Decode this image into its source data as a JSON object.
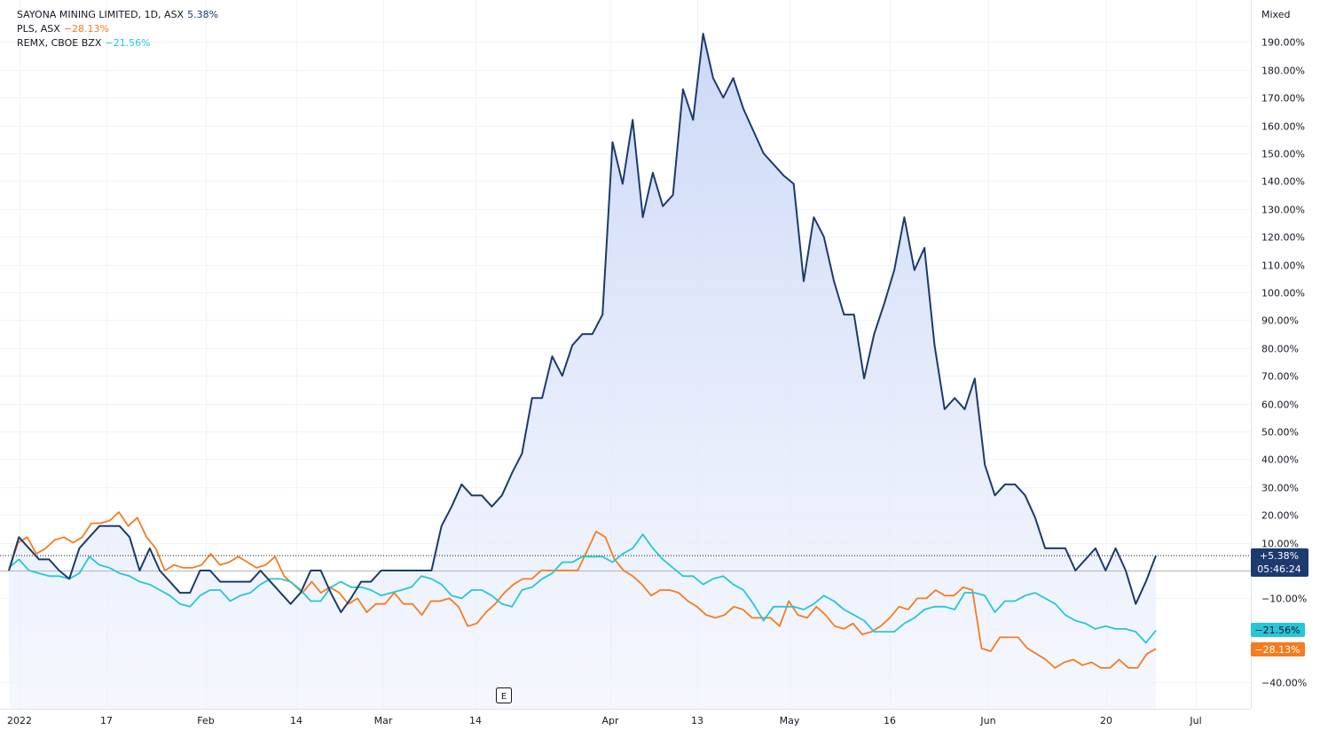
{
  "legend": [
    {
      "label": "SAYONA MINING LIMITED, 1D, ASX",
      "value": "5.38%",
      "color": "#1c3a6e"
    },
    {
      "label": "PLS, ASX",
      "value": "−28.13%",
      "color": "#f57c1f"
    },
    {
      "label": "REMX, CBOE BZX",
      "value": "−21.56%",
      "color": "#26c6da"
    }
  ],
  "scale_mode": "Mixed",
  "earnings_marker": "E",
  "badges": {
    "sya_value": "+5.38%",
    "sya_time": "05:46:24",
    "remx": "−21.56%",
    "pls": "−28.13%"
  },
  "chart_data": {
    "type": "line",
    "x_axis_labels": [
      "2022",
      "17",
      "Feb",
      "14",
      "Mar",
      "14",
      "Apr",
      "13",
      "May",
      "16",
      "Jun",
      "20",
      "Jul"
    ],
    "y_axis_labels": [
      "190.00%",
      "180.00%",
      "170.00%",
      "160.00%",
      "150.00%",
      "140.00%",
      "130.00%",
      "120.00%",
      "110.00%",
      "100.00%",
      "90.00%",
      "80.00%",
      "70.00%",
      "60.00%",
      "50.00%",
      "40.00%",
      "30.00%",
      "20.00%",
      "10.00%",
      "−10.00%",
      "−40.00%"
    ],
    "ylim": [
      -44,
      203
    ],
    "y_unit": "%",
    "area_fill_series": 0,
    "series": [
      {
        "name": "SAYONA MINING LIMITED, 1D, ASX",
        "color": "#1c3a6e",
        "values": [
          0,
          12,
          8,
          4,
          4,
          0,
          -3,
          8,
          12,
          16,
          16,
          16,
          12,
          0,
          8,
          0,
          -4,
          -8,
          -8,
          0,
          0,
          -4,
          -4,
          -4,
          -4,
          0,
          -4,
          -8,
          -12,
          -8,
          0,
          0,
          -8,
          -15,
          -10,
          -4,
          -4,
          0,
          0,
          0,
          0,
          0,
          0,
          16,
          23,
          31,
          27,
          27,
          23,
          27,
          35,
          42,
          62,
          62,
          77,
          70,
          81,
          85,
          85,
          92,
          154,
          139,
          162,
          127,
          143,
          131,
          135,
          173,
          162,
          193,
          177,
          170,
          177,
          166,
          158,
          150,
          146,
          142,
          139,
          104,
          127,
          120,
          104,
          92,
          92,
          69,
          85,
          96,
          108,
          127,
          108,
          116,
          81,
          58,
          62,
          58,
          69,
          38,
          27,
          31,
          31,
          27,
          19,
          8,
          8,
          8,
          0,
          4,
          8,
          0,
          8,
          0,
          -12,
          -4,
          5.38
        ]
      },
      {
        "name": "PLS, ASX",
        "color": "#f57c1f",
        "values": [
          0,
          10,
          12,
          6,
          8,
          11,
          12,
          10,
          12,
          17,
          17,
          18,
          21,
          16,
          19,
          12,
          8,
          0,
          2,
          1,
          1,
          2,
          6,
          2,
          3,
          5,
          3,
          1,
          2,
          5,
          -2,
          -5,
          -8,
          -4,
          -8,
          -6,
          -8,
          -12,
          -10,
          -15,
          -12,
          -12,
          -8,
          -12,
          -12,
          -16,
          -11,
          -11,
          -10,
          -13,
          -20,
          -19,
          -15,
          -12,
          -8,
          -5,
          -3,
          -3,
          0,
          0,
          0,
          0,
          0,
          7,
          14,
          12,
          4,
          0,
          -2,
          -5,
          -9,
          -7,
          -7,
          -8,
          -11,
          -13,
          -16,
          -17,
          -16,
          -13,
          -14,
          -17,
          -17,
          -17,
          -20,
          -11,
          -16,
          -17,
          -13,
          -16,
          -20,
          -21,
          -19,
          -23,
          -22,
          -20,
          -17,
          -13,
          -14,
          -10,
          -10,
          -7,
          -9,
          -9,
          -6,
          -7,
          -28,
          -29,
          -24,
          -24,
          -24,
          -28,
          -30,
          -32,
          -35,
          -33,
          -32,
          -34,
          -33,
          -35,
          -35,
          -32,
          -35,
          -35,
          -30,
          -28.13
        ]
      },
      {
        "name": "REMX, CBOE BZX",
        "color": "#26c6da",
        "values": [
          1,
          4,
          0,
          -1,
          -2,
          -2,
          -3,
          -1,
          5,
          2,
          1,
          -1,
          -2,
          -4,
          -5,
          -7,
          -9,
          -12,
          -13,
          -9,
          -7,
          -7,
          -11,
          -9,
          -8,
          -5,
          -3,
          -3,
          -4,
          -7,
          -11,
          -11,
          -6,
          -4,
          -6,
          -6,
          -7,
          -9,
          -8,
          -7,
          -6,
          -2,
          -3,
          -5,
          -9,
          -10,
          -7,
          -7,
          -9,
          -12,
          -13,
          -7,
          -6,
          -3,
          -1,
          3,
          3,
          5,
          5,
          5,
          3,
          6,
          8,
          13,
          8,
          4,
          1,
          -2,
          -2,
          -5,
          -3,
          -2,
          -5,
          -7,
          -12,
          -18,
          -13,
          -13,
          -13,
          -14,
          -12,
          -9,
          -11,
          -14,
          -16,
          -18,
          -22,
          -22,
          -22,
          -19,
          -17,
          -14,
          -13,
          -13,
          -14,
          -8,
          -8,
          -9,
          -15,
          -11,
          -11,
          -9,
          -8,
          -10,
          -12,
          -16,
          -18,
          -19,
          -21,
          -20,
          -21,
          -21,
          -22,
          -26,
          -21.56
        ]
      }
    ]
  }
}
